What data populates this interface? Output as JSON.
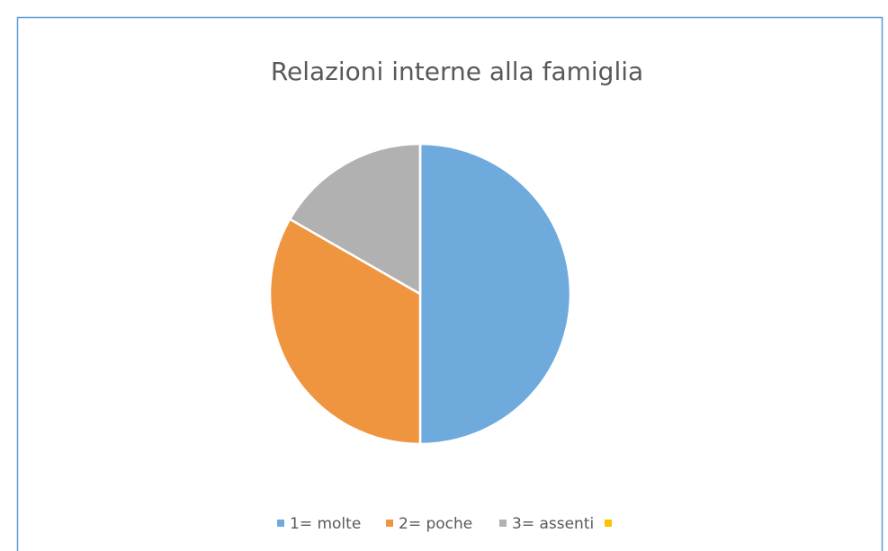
{
  "chart_data": {
    "type": "pie",
    "title": "Relazioni interne alla famiglia",
    "categories": [
      "1= molte",
      "2= poche",
      "3= assenti",
      null
    ],
    "values": [
      50,
      33.3,
      16.7,
      0
    ],
    "colors": [
      "#6eaadc",
      "#f0953f",
      "#b1b1b1",
      "#fbc200"
    ],
    "legend": "bottom"
  }
}
